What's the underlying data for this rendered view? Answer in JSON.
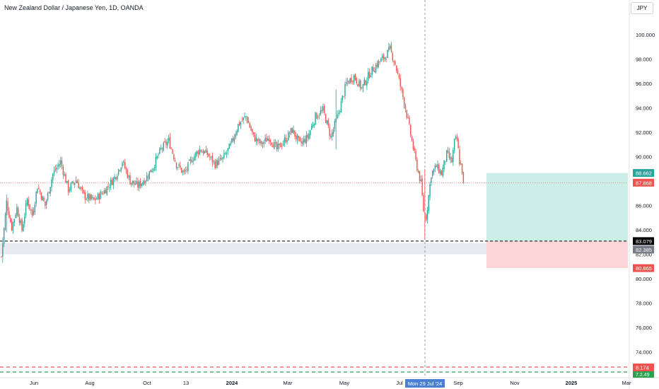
{
  "header": {
    "symbol_title": "New Zealand Dollar / Japanese Yen, 1D, OANDA",
    "currency_button": "JPY"
  },
  "colors": {
    "up": "#26a69a",
    "down": "#ef5350",
    "target_zone": "#cdeee6",
    "stop_zone": "#fbd5d8",
    "support_zone": "#e8eaed",
    "target_badge": "#26a69a",
    "stop_badge": "#ef5350",
    "entry_badge": "#000000",
    "current_badge": "#ef5350",
    "crosshair_badge": "#4a7fd6",
    "grey_badge": "#787b86"
  },
  "chart_data": {
    "type": "candlestick",
    "title": "",
    "xlabel": "",
    "ylabel": "",
    "ylim": [
      72.5,
      101.8
    ],
    "grid": false,
    "y_ticks": [
      "100.000",
      "98.000",
      "96.000",
      "94.000",
      "92.000",
      "90.000",
      "88.000",
      "86.000",
      "84.000",
      "82.000",
      "80.000",
      "78.000",
      "76.000",
      "74.000"
    ],
    "x_ticks": [
      "Jun",
      "Aug",
      "Oct",
      "13",
      "2024",
      "Mar",
      "May",
      "Jul",
      "Sep",
      "Nov",
      "2025",
      "Mar"
    ],
    "crosshair_label": "Mon 29 Jul '24",
    "close_path": [
      [
        0,
        81.8
      ],
      [
        4,
        86.3
      ],
      [
        8,
        84.2
      ],
      [
        12,
        85.8
      ],
      [
        16,
        84.0
      ],
      [
        20,
        86.5
      ],
      [
        24,
        85.2
      ],
      [
        28,
        87.6
      ],
      [
        34,
        86.0
      ],
      [
        40,
        88.6
      ],
      [
        46,
        89.6
      ],
      [
        52,
        87.3
      ],
      [
        58,
        88.1
      ],
      [
        64,
        86.8
      ],
      [
        72,
        86.4
      ],
      [
        80,
        87.2
      ],
      [
        88,
        88.3
      ],
      [
        94,
        89.6
      ],
      [
        100,
        88.0
      ],
      [
        106,
        87.6
      ],
      [
        112,
        88.2
      ],
      [
        118,
        89.2
      ],
      [
        124,
        90.6
      ],
      [
        130,
        91.3
      ],
      [
        136,
        89.4
      ],
      [
        142,
        88.6
      ],
      [
        148,
        89.8
      ],
      [
        154,
        90.6
      ],
      [
        160,
        90.2
      ],
      [
        166,
        89.4
      ],
      [
        172,
        89.8
      ],
      [
        178,
        90.9
      ],
      [
        184,
        92.6
      ],
      [
        190,
        93.3
      ],
      [
        196,
        91.6
      ],
      [
        202,
        91.0
      ],
      [
        208,
        91.6
      ],
      [
        214,
        90.6
      ],
      [
        220,
        91.3
      ],
      [
        226,
        92.2
      ],
      [
        232,
        91.0
      ],
      [
        238,
        91.6
      ],
      [
        244,
        93.3
      ],
      [
        250,
        93.8
      ],
      [
        256,
        91.6
      ],
      [
        262,
        93.6
      ],
      [
        268,
        96.0
      ],
      [
        274,
        96.6
      ],
      [
        280,
        95.6
      ],
      [
        286,
        96.8
      ],
      [
        292,
        97.6
      ],
      [
        298,
        98.2
      ],
      [
        302,
        98.8
      ],
      [
        306,
        97.6
      ],
      [
        310,
        95.8
      ],
      [
        314,
        94.0
      ],
      [
        318,
        91.8
      ],
      [
        322,
        89.6
      ],
      [
        326,
        87.8
      ],
      [
        328,
        85.6
      ],
      [
        330,
        85.0
      ],
      [
        334,
        88.6
      ],
      [
        338,
        89.2
      ],
      [
        342,
        88.6
      ],
      [
        346,
        90.2
      ],
      [
        350,
        89.6
      ],
      [
        352,
        91.2
      ],
      [
        354,
        91.4
      ],
      [
        356,
        89.6
      ],
      [
        358,
        88.9
      ],
      [
        359,
        87.868
      ]
    ],
    "spikes": [
      {
        "i": 1,
        "low": 81.3,
        "high": 83.4
      },
      {
        "i": 260,
        "low": 90.6,
        "high": 95.5
      },
      {
        "i": 329,
        "low": 83.2,
        "high": 89.0
      },
      {
        "i": 4,
        "low": 83.8,
        "high": 86.9
      }
    ],
    "candle_count": 360,
    "x_start": 2,
    "x_step": 1.82,
    "levels": {
      "target": 88.662,
      "current": 87.868,
      "entry": 83.079,
      "support_top": 82.9,
      "support_bottom": 82.0,
      "grey_marker": 82.385,
      "grey_marker_text": "82.385",
      "hidden_marker_text": "82.000",
      "stop": 80.865,
      "bottom_red_label": "8.174",
      "bottom_green_label": "7.2.49"
    },
    "position_tool": {
      "x_from": 688,
      "x_to": 888,
      "target": 88.662,
      "entry": 83.079,
      "stop": 80.865
    },
    "axis_labels": {
      "target": "88.662",
      "current": "87.868",
      "entry": "83.079",
      "grey": "82.385",
      "stop": "80.865"
    }
  }
}
